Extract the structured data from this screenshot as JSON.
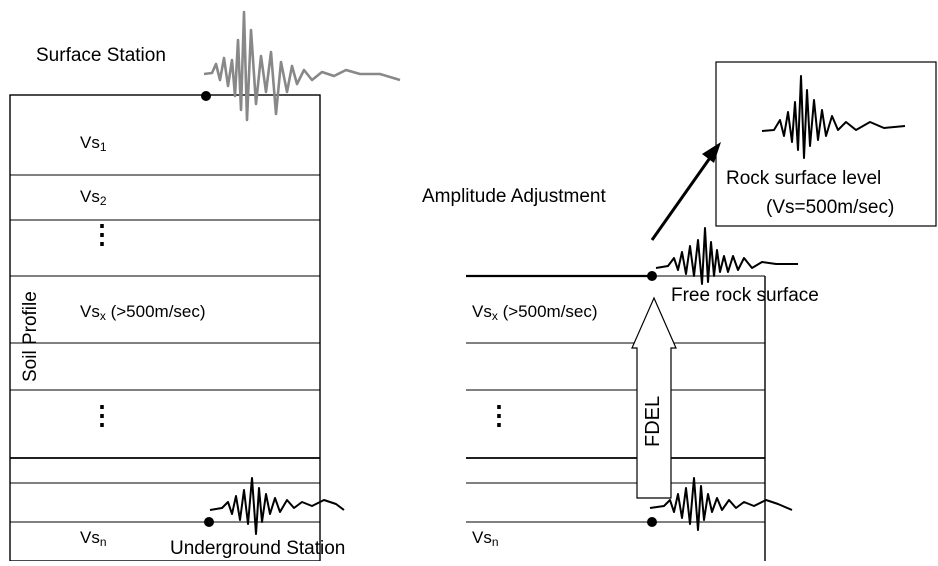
{
  "labels": {
    "surface_station": "Surface Station",
    "underground_station": "Underground Station",
    "soil_profile": "Soil Profile",
    "amplitude_adjustment": "Amplitude Adjustment",
    "rock_surface_level": "Rock surface level",
    "rock_surface_vs": "(Vs=500m/sec)",
    "free_rock_surface": "Free rock surface",
    "fdel": "FDEL"
  },
  "layers": {
    "vs_prefix": "Vs",
    "vs1_sub": "1",
    "vs2_sub": "2",
    "vsx_sub": "x",
    "vsx_note": "(>500m/sec)",
    "vsn_sub": "n"
  },
  "ellipsis": "⋮",
  "colors": {
    "line": "#000000",
    "surface_wave": "#888888",
    "background": "#ffffff"
  }
}
